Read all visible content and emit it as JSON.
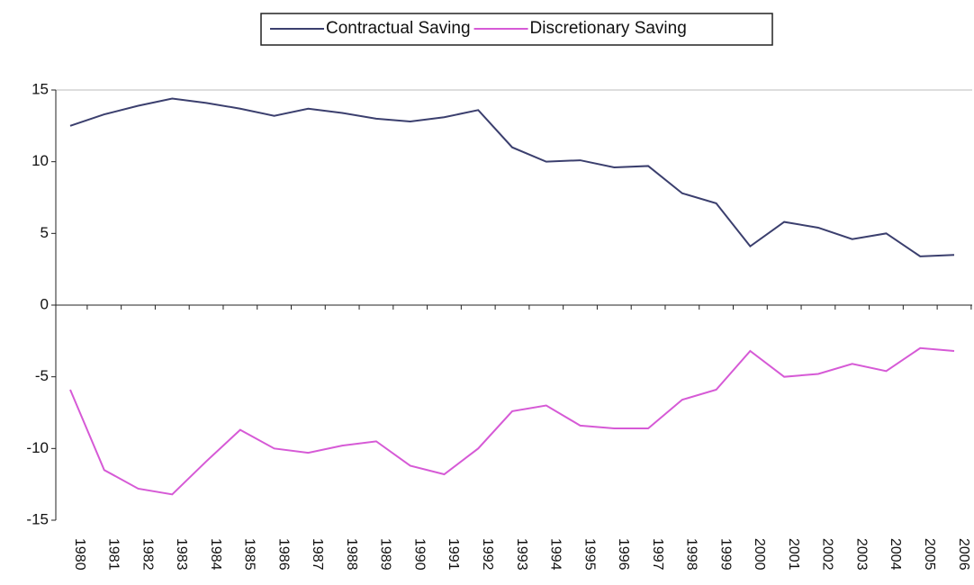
{
  "chart_data": {
    "type": "line",
    "categories": [
      "1980",
      "1981",
      "1982",
      "1983",
      "1984",
      "1985",
      "1986",
      "1987",
      "1988",
      "1989",
      "1990",
      "1991",
      "1992",
      "1993",
      "1994",
      "1995",
      "1996",
      "1997",
      "1998",
      "1999",
      "2000",
      "2001",
      "2002",
      "2003",
      "2004",
      "2005",
      "2006"
    ],
    "series": [
      {
        "name": "Contractual Saving",
        "color": "#3b3f6e",
        "values": [
          12.5,
          13.3,
          13.9,
          14.4,
          14.1,
          13.7,
          13.2,
          13.7,
          13.4,
          13.0,
          12.8,
          13.1,
          13.6,
          11.0,
          10.0,
          10.1,
          9.6,
          9.7,
          7.8,
          7.1,
          4.1,
          5.8,
          5.4,
          4.6,
          5.0,
          3.4,
          3.5
        ]
      },
      {
        "name": "Discretionary Saving",
        "color": "#d65ad6",
        "values": [
          -5.9,
          -11.5,
          -12.8,
          -13.2,
          -10.9,
          -8.7,
          -10.0,
          -10.3,
          -9.8,
          -9.5,
          -11.2,
          -11.8,
          -10.0,
          -7.4,
          -7.0,
          -8.4,
          -8.6,
          -8.6,
          -6.6,
          -5.9,
          -3.2,
          -5.0,
          -4.8,
          -4.1,
          -4.6,
          -3.0,
          -3.2
        ]
      }
    ],
    "ylim": [
      -15,
      15
    ],
    "yticks": [
      15,
      10,
      5,
      0,
      -5,
      -10,
      -15
    ],
    "grid": false,
    "legend": "top"
  }
}
